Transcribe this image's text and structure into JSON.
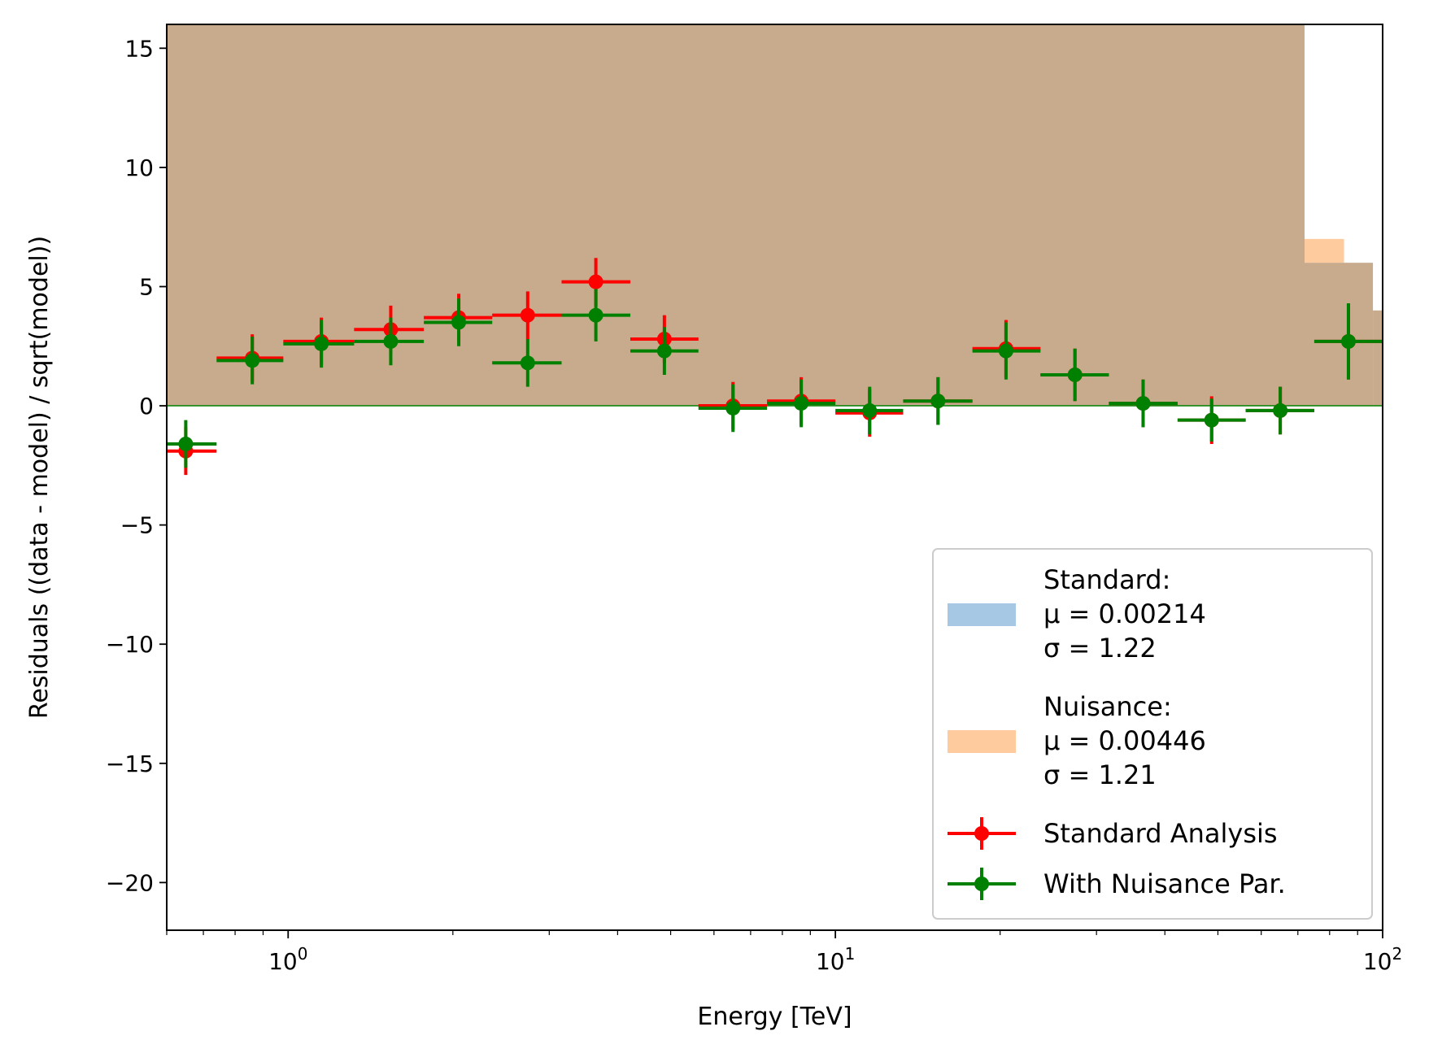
{
  "chart_data": {
    "type": "scatter",
    "xlabel": "Energy [TeV]",
    "ylabel": "Residuals ((data - model) / sqrt(model))",
    "xscale": "log",
    "xlim": [
      0.6,
      100
    ],
    "ylim": [
      -22,
      16
    ],
    "grid": false,
    "legend_position": "lower-right",
    "x_tick_labels": [
      {
        "value": 1,
        "base": "10",
        "exp": "0"
      },
      {
        "value": 10,
        "base": "10",
        "exp": "1"
      },
      {
        "value": 100,
        "base": "10",
        "exp": "2"
      }
    ],
    "y_ticks": [
      15,
      10,
      5,
      0,
      -5,
      -10,
      -15,
      -20
    ],
    "y_tick_labels": [
      "15",
      "10",
      "5",
      "0",
      "−5",
      "−10",
      "−15",
      "−20"
    ],
    "histograms": [
      {
        "name": "Standard",
        "color": "#a6c8e4",
        "steps": [
          {
            "x0": 0.6,
            "x1": 72,
            "y": 16
          },
          {
            "x0": 72,
            "x1": 85,
            "y": 6
          },
          {
            "x0": 85,
            "x1": 96,
            "y": 6
          },
          {
            "x0": 96,
            "x1": 100,
            "y": 4
          }
        ]
      },
      {
        "name": "Nuisance",
        "color": "#fdcb9e",
        "steps": [
          {
            "x0": 0.6,
            "x1": 72,
            "y": 16
          },
          {
            "x0": 72,
            "x1": 85,
            "y": 7
          },
          {
            "x0": 85,
            "x1": 96,
            "y": 6
          },
          {
            "x0": 96,
            "x1": 100,
            "y": 4
          }
        ]
      }
    ],
    "overlap_color": "#c8aa8c",
    "series": [
      {
        "name": "Standard Analysis",
        "color": "#ff0000",
        "points": [
          {
            "x": 0.65,
            "y": -1.9,
            "xlo": 0.6,
            "xhi": 0.74,
            "yerr": 1.0
          },
          {
            "x": 0.86,
            "y": 2.0,
            "xlo": 0.74,
            "xhi": 0.98,
            "yerr": 1.0
          },
          {
            "x": 1.15,
            "y": 2.7,
            "xlo": 0.98,
            "xhi": 1.32,
            "yerr": 1.0
          },
          {
            "x": 1.54,
            "y": 3.2,
            "xlo": 1.32,
            "xhi": 1.77,
            "yerr": 1.0
          },
          {
            "x": 2.05,
            "y": 3.7,
            "xlo": 1.77,
            "xhi": 2.36,
            "yerr": 1.0
          },
          {
            "x": 2.74,
            "y": 3.8,
            "xlo": 2.36,
            "xhi": 3.16,
            "yerr": 1.0
          },
          {
            "x": 3.65,
            "y": 5.2,
            "xlo": 3.16,
            "xhi": 4.22,
            "yerr": 1.0
          },
          {
            "x": 4.87,
            "y": 2.8,
            "xlo": 4.22,
            "xhi": 5.62,
            "yerr": 1.0
          },
          {
            "x": 6.5,
            "y": 0.0,
            "xlo": 5.62,
            "xhi": 7.5,
            "yerr": 1.0
          },
          {
            "x": 8.66,
            "y": 0.2,
            "xlo": 7.5,
            "xhi": 10.0,
            "yerr": 1.0
          },
          {
            "x": 11.55,
            "y": -0.3,
            "xlo": 10.0,
            "xhi": 13.3,
            "yerr": 1.0
          },
          {
            "x": 15.4,
            "y": 0.2,
            "xlo": 13.3,
            "xhi": 17.8,
            "yerr": 1.0
          },
          {
            "x": 20.5,
            "y": 2.4,
            "xlo": 17.8,
            "xhi": 23.7,
            "yerr": 1.2
          },
          {
            "x": 27.4,
            "y": 1.3,
            "xlo": 23.7,
            "xhi": 31.6,
            "yerr": 1.1
          },
          {
            "x": 36.5,
            "y": 0.1,
            "xlo": 31.6,
            "xhi": 42.2,
            "yerr": 1.0
          },
          {
            "x": 48.7,
            "y": -0.6,
            "xlo": 42.2,
            "xhi": 56.2,
            "yerr": 1.0
          },
          {
            "x": 65.0,
            "y": -0.2,
            "xlo": 56.2,
            "xhi": 75.0,
            "yerr": 1.0
          },
          {
            "x": 86.6,
            "y": 2.7,
            "xlo": 75.0,
            "xhi": 100.0,
            "yerr": 1.6
          }
        ]
      },
      {
        "name": "With Nuisance Par.",
        "color": "#008000",
        "points": [
          {
            "x": 0.65,
            "y": -1.6,
            "xlo": 0.6,
            "xhi": 0.74,
            "yerr": 1.0
          },
          {
            "x": 0.86,
            "y": 1.9,
            "xlo": 0.74,
            "xhi": 0.98,
            "yerr": 1.0
          },
          {
            "x": 1.15,
            "y": 2.6,
            "xlo": 0.98,
            "xhi": 1.32,
            "yerr": 1.0
          },
          {
            "x": 1.54,
            "y": 2.7,
            "xlo": 1.32,
            "xhi": 1.77,
            "yerr": 1.0
          },
          {
            "x": 2.05,
            "y": 3.5,
            "xlo": 1.77,
            "xhi": 2.36,
            "yerr": 1.0
          },
          {
            "x": 2.74,
            "y": 1.8,
            "xlo": 2.36,
            "xhi": 3.16,
            "yerr": 1.0
          },
          {
            "x": 3.65,
            "y": 3.8,
            "xlo": 3.16,
            "xhi": 4.22,
            "yerr": 1.1
          },
          {
            "x": 4.87,
            "y": 2.3,
            "xlo": 4.22,
            "xhi": 5.62,
            "yerr": 1.0
          },
          {
            "x": 6.5,
            "y": -0.1,
            "xlo": 5.62,
            "xhi": 7.5,
            "yerr": 1.0
          },
          {
            "x": 8.66,
            "y": 0.1,
            "xlo": 7.5,
            "xhi": 10.0,
            "yerr": 1.0
          },
          {
            "x": 11.55,
            "y": -0.2,
            "xlo": 10.0,
            "xhi": 13.3,
            "yerr": 1.0
          },
          {
            "x": 15.4,
            "y": 0.2,
            "xlo": 13.3,
            "xhi": 17.8,
            "yerr": 1.0
          },
          {
            "x": 20.5,
            "y": 2.3,
            "xlo": 17.8,
            "xhi": 23.7,
            "yerr": 1.2
          },
          {
            "x": 27.4,
            "y": 1.3,
            "xlo": 23.7,
            "xhi": 31.6,
            "yerr": 1.1
          },
          {
            "x": 36.5,
            "y": 0.1,
            "xlo": 31.6,
            "xhi": 42.2,
            "yerr": 1.0
          },
          {
            "x": 48.7,
            "y": -0.6,
            "xlo": 42.2,
            "xhi": 56.2,
            "yerr": 0.9
          },
          {
            "x": 65.0,
            "y": -0.2,
            "xlo": 56.2,
            "xhi": 75.0,
            "yerr": 1.0
          },
          {
            "x": 86.6,
            "y": 2.7,
            "xlo": 75.0,
            "xhi": 100.0,
            "yerr": 1.6
          }
        ]
      }
    ],
    "legend": {
      "entries": [
        {
          "kind": "patch",
          "color": "#a6c8e4",
          "lines": [
            "Standard:",
            "μ = 0.00214",
            "σ = 1.22"
          ]
        },
        {
          "kind": "patch",
          "color": "#fdcb9e",
          "lines": [
            "Nuisance:",
            "μ = 0.00446",
            "σ = 1.21"
          ]
        },
        {
          "kind": "errorbar",
          "color": "#ff0000",
          "lines": [
            "Standard Analysis"
          ]
        },
        {
          "kind": "errorbar",
          "color": "#008000",
          "lines": [
            "With Nuisance Par."
          ]
        }
      ]
    }
  }
}
